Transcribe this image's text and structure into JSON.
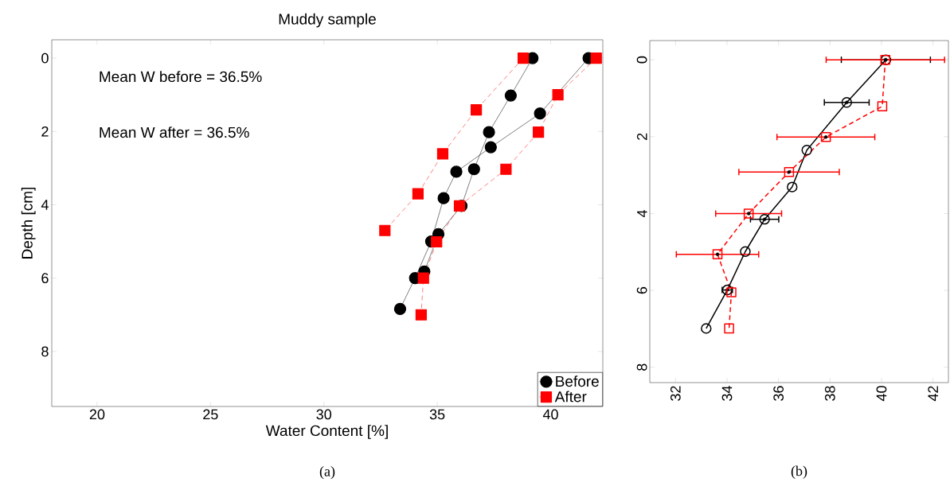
{
  "chart_data": [
    {
      "type": "line",
      "title": "Muddy sample",
      "xlabel": "Water Content [%]",
      "ylabel": "Depth [cm]",
      "annotations": [
        "Mean W before = 36.5%",
        "Mean W after = 36.5%",
        "(a)"
      ],
      "xlim": [
        18,
        42.3
      ],
      "ylim": [
        9.5,
        -0.5
      ],
      "xticks": [
        20,
        25,
        30,
        35,
        40
      ],
      "yticks": [
        0,
        2,
        4,
        6,
        8
      ],
      "legend": "bottom right",
      "series": [
        {
          "name": "Before",
          "color": "#000000",
          "marker": "circle",
          "line_style": "solid",
          "x": [
            41.67,
            39.53,
            37.36,
            35.84,
            35.28,
            34.73,
            34.02,
            33.36
          ],
          "values": [
            0,
            1.51,
            2.43,
            3.1,
            3.82,
            5.0,
            6.0,
            6.84
          ]
        },
        {
          "color": "#000000",
          "marker": "circle",
          "line_style": "solid",
          "x": [
            39.2,
            38.24,
            37.28,
            36.62,
            36.07,
            35.05,
            34.43
          ],
          "values": [
            0,
            1.02,
            2.02,
            3.03,
            4.03,
            4.8,
            5.82
          ]
        },
        {
          "name": "After",
          "color": "#ff0000",
          "marker": "square",
          "line_style": "dashed",
          "x": [
            42.01,
            40.32,
            39.46,
            38.03,
            35.98,
            34.97,
            34.39,
            34.29
          ],
          "values": [
            0,
            1.0,
            2.02,
            3.03,
            4.03,
            5.01,
            6.0,
            7.0
          ]
        },
        {
          "color": "#ff0000",
          "marker": "square",
          "line_style": "dashed",
          "x": [
            38.79,
            36.72,
            35.24,
            34.15,
            32.69
          ],
          "values": [
            0,
            1.41,
            2.61,
            3.7,
            4.7
          ]
        }
      ]
    },
    {
      "type": "line",
      "annotations": [
        "(b)"
      ],
      "xlim": [
        31,
        42.6
      ],
      "ylim": [
        8.4,
        -0.5
      ],
      "xticks": [
        32,
        34,
        36,
        38,
        40,
        42
      ],
      "yticks": [
        0,
        2,
        4,
        6,
        8
      ],
      "series": [
        {
          "color": "#000000",
          "marker": "circle",
          "line_style": "solid",
          "x": [
            40.17,
            38.65,
            37.1,
            36.53,
            35.46,
            34.71,
            34.01,
            33.19
          ],
          "values": [
            0,
            1.11,
            2.35,
            3.31,
            4.15,
            4.99,
            5.99,
            6.99
          ],
          "xerrors": [
            1.73,
            0.87,
            null,
            null,
            0.55,
            null,
            0.2,
            null
          ]
        },
        {
          "color": "#ff0000",
          "marker": "square",
          "line_style": "dashed",
          "x": [
            40.15,
            40.03,
            37.84,
            36.41,
            34.84,
            33.63,
            34.17,
            34.08
          ],
          "values": [
            0,
            1.21,
            2.01,
            2.92,
            4.0,
            5.06,
            6.05,
            6.99
          ],
          "xerrors": [
            2.3,
            null,
            1.9,
            1.95,
            1.28,
            1.6,
            null,
            null
          ]
        }
      ]
    }
  ]
}
